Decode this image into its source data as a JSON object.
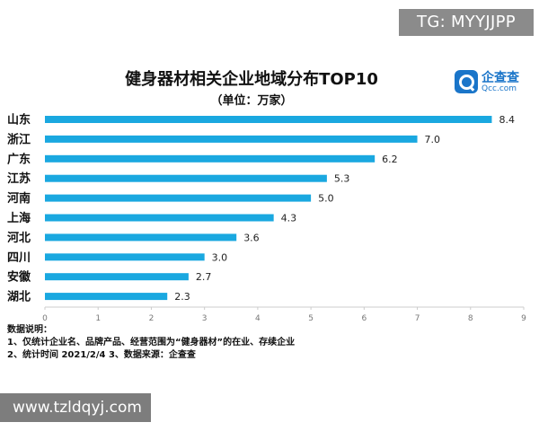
{
  "watermark": {
    "top_right": "TG: MYYJJPP",
    "bottom_left": "www.tzldqyj.com"
  },
  "brand": {
    "name": "企查查",
    "domain": "Qcc.com"
  },
  "chart_data": {
    "type": "bar",
    "orientation": "horizontal",
    "title": "健身器材相关企业地域分布TOP10",
    "subtitle": "（单位：万家）",
    "categories": [
      "山东",
      "浙江",
      "广东",
      "江苏",
      "河南",
      "上海",
      "河北",
      "四川",
      "安徽",
      "湖北"
    ],
    "values": [
      8.4,
      7.0,
      6.2,
      5.3,
      5.0,
      4.3,
      3.6,
      3.0,
      2.7,
      2.3
    ],
    "value_labels": [
      "8.4",
      "7.0",
      "6.2",
      "5.3",
      "5.0",
      "4.3",
      "3.6",
      "3.0",
      "2.7",
      "2.3"
    ],
    "x_ticks": [
      0,
      1,
      2,
      3,
      4,
      5,
      6,
      7,
      8,
      9
    ],
    "xlim": [
      0,
      9
    ],
    "bar_color": "#1aa8e0",
    "grid": false,
    "legend": "none"
  },
  "notes": {
    "heading": "数据说明：",
    "line1": "1、仅统计企业名、品牌产品、经营范围为“健身器材”的在业、存续企业",
    "line2": "2、统计时间  2021/2/4       3、数据来源：企查查"
  }
}
